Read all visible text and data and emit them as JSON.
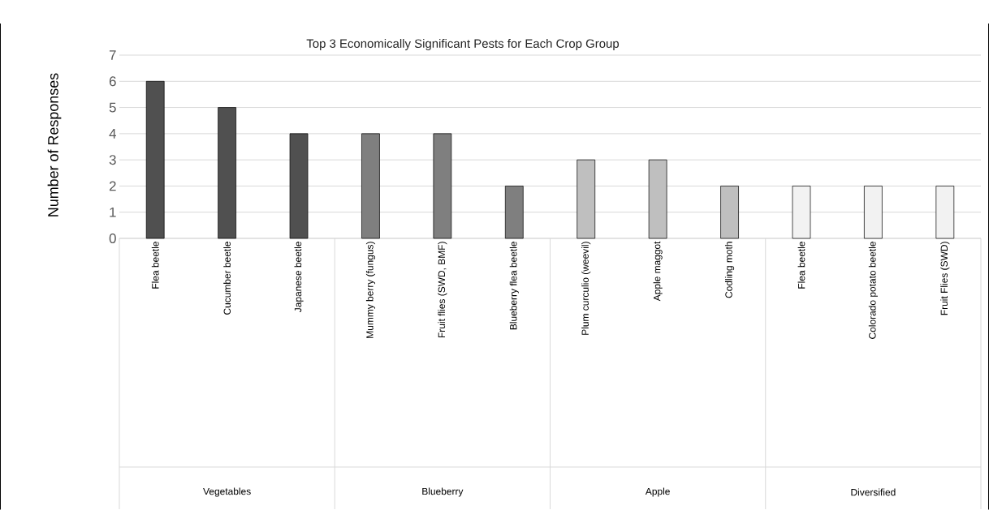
{
  "chart_data": {
    "type": "bar",
    "title": "Top 3 Economically Significant Pests for Each Crop Group",
    "ylabel": "Number of Responses",
    "categories": [
      "Flea beetle",
      "Cucumber beetle",
      "Japanese beetle",
      "Mummy berry (fungus)",
      "Fruit flies (SWD, BMF)",
      "Blueberry flea beetle",
      "Plum curculio (weevil)",
      "Apple maggot",
      "Codling moth",
      "Flea beetle",
      "Colorado potato beetle",
      "Fruit Flies (SWD)"
    ],
    "values": [
      6,
      5,
      4,
      4,
      4,
      2,
      3,
      3,
      2,
      2,
      2,
      2
    ],
    "colors": [
      "#505050",
      "#505050",
      "#505050",
      "#7f7f7f",
      "#7f7f7f",
      "#7f7f7f",
      "#bfbfbf",
      "#bfbfbf",
      "#bfbfbf",
      "#f2f2f2",
      "#f2f2f2",
      "#f2f2f2"
    ],
    "annotations": [
      "Vegetables",
      "Blueberry",
      "Apple",
      "Diversified"
    ],
    "ylim": [
      0,
      7
    ],
    "yticks": [
      0,
      1,
      2,
      3,
      4,
      5,
      6,
      7
    ],
    "grid": "y"
  }
}
